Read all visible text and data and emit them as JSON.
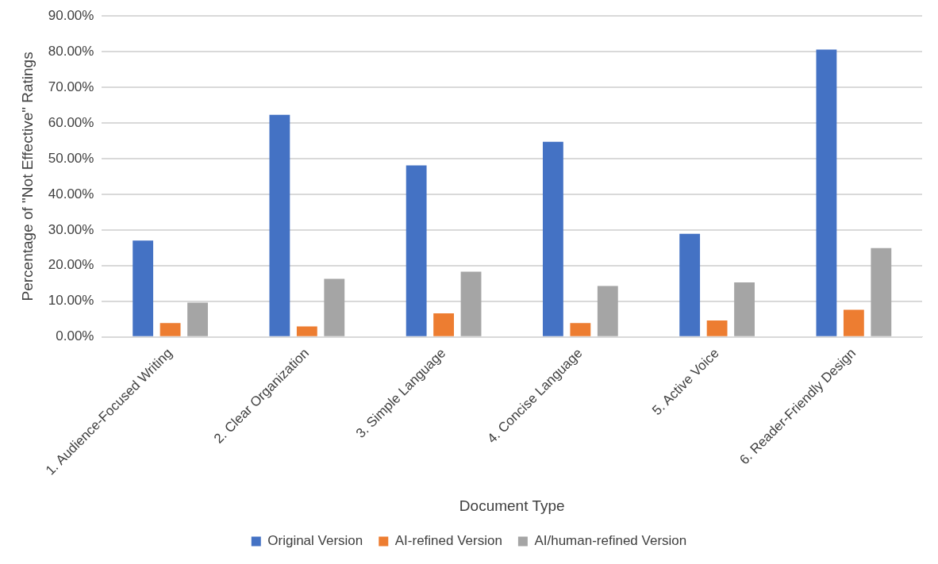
{
  "chart_data": {
    "type": "bar",
    "xlabel": "Document Type",
    "ylabel": "Percentage of \"Not Effective\" Ratings",
    "categories": [
      "1. Audience-Focused Writing",
      "2. Clear Organization",
      "3. Simple Language",
      "4. Concise Language",
      "5. Active Voice",
      "6. Reader-Friendly Design"
    ],
    "series": [
      {
        "name": "Original Version",
        "color": "#4472c4",
        "values": [
          27,
          62.3,
          48.1,
          54.7,
          28.9,
          80.6
        ]
      },
      {
        "name": "AI-refined Version",
        "color": "#ed7d31",
        "values": [
          3.9,
          2.9,
          6.6,
          3.9,
          4.6,
          7.6
        ]
      },
      {
        "name": "AI/human-refined Version",
        "color": "#a5a5a5",
        "values": [
          9.6,
          16.3,
          18.3,
          14.3,
          15.3,
          24.9
        ]
      }
    ],
    "ylim": [
      0,
      90
    ],
    "yticks": [
      {
        "value": 0,
        "label": "0.00%"
      },
      {
        "value": 10,
        "label": "10.00%"
      },
      {
        "value": 20,
        "label": "20.00%"
      },
      {
        "value": 30,
        "label": "30.00%"
      },
      {
        "value": 40,
        "label": "40.00%"
      },
      {
        "value": 50,
        "label": "50.00%"
      },
      {
        "value": 60,
        "label": "60.00%"
      },
      {
        "value": 70,
        "label": "70.00%"
      },
      {
        "value": 80,
        "label": "80.00%"
      },
      {
        "value": 90,
        "label": "90.00%"
      }
    ],
    "grid": "y",
    "legend": "bottom"
  }
}
